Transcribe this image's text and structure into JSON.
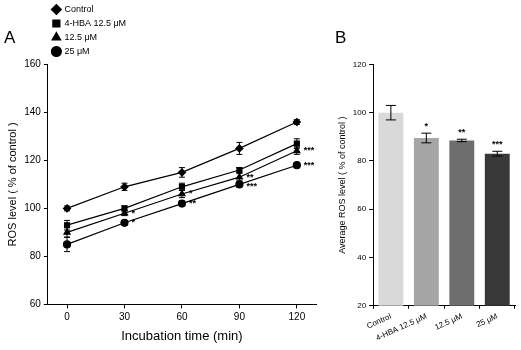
{
  "chart_data": [
    {
      "type": "line",
      "title": "A",
      "x_label": "Incubation time (min)",
      "y_label": "ROS level ( % of control )",
      "x": [
        0,
        30,
        60,
        90,
        120
      ],
      "xlim": [
        -10,
        130
      ],
      "xticks": [
        0,
        30,
        60,
        90,
        120
      ],
      "ylim": [
        60,
        160
      ],
      "yticks": [
        60,
        80,
        100,
        120,
        140,
        160
      ],
      "grid": false,
      "legend": "upper left",
      "series": [
        {
          "name": "Control",
          "color": "#000000",
          "marker": "diamond",
          "values": [
            100,
            109,
            115,
            125,
            136
          ],
          "errors": [
            1,
            1.5,
            2,
            2.5,
            1
          ]
        },
        {
          "name": "4-HBA 12.5 μM",
          "color": "#000000",
          "marker": "square",
          "values": [
            93,
            100,
            109,
            116,
            127
          ],
          "errors": [
            2,
            1,
            1.5,
            1,
            2
          ]
        },
        {
          "name": "12.5 μM",
          "color": "#000000",
          "marker": "triangle",
          "values": [
            90,
            98,
            106,
            113,
            124
          ],
          "errors": [
            2,
            1,
            1.5,
            1.5,
            1.5
          ],
          "annotations": [
            null,
            "*",
            "*",
            "**",
            "***"
          ]
        },
        {
          "name": "25 μM",
          "color": "#000000",
          "marker": "circle",
          "values": [
            85,
            94,
            102,
            110,
            118
          ],
          "errors": [
            3,
            1,
            1,
            1,
            1
          ],
          "annotations": [
            null,
            "*",
            "**",
            "***",
            "***"
          ]
        }
      ]
    },
    {
      "type": "bar",
      "title": "B",
      "y_label": "Average ROS level ( % of control )",
      "categories": [
        "Control",
        "4-HBA 12.5 μM",
        "12.5 μM",
        "25 μM"
      ],
      "values": [
        100,
        89.5,
        88.5,
        83
      ],
      "errors": [
        3,
        2,
        0.5,
        1
      ],
      "annotations": [
        null,
        "*",
        "**",
        "***"
      ],
      "colors": [
        "#d9d9d9",
        "#a6a6a6",
        "#6e6e6e",
        "#383838"
      ],
      "ylim": [
        20,
        120
      ],
      "yticks": [
        20,
        40,
        60,
        80,
        100,
        120
      ],
      "grid": false
    }
  ]
}
